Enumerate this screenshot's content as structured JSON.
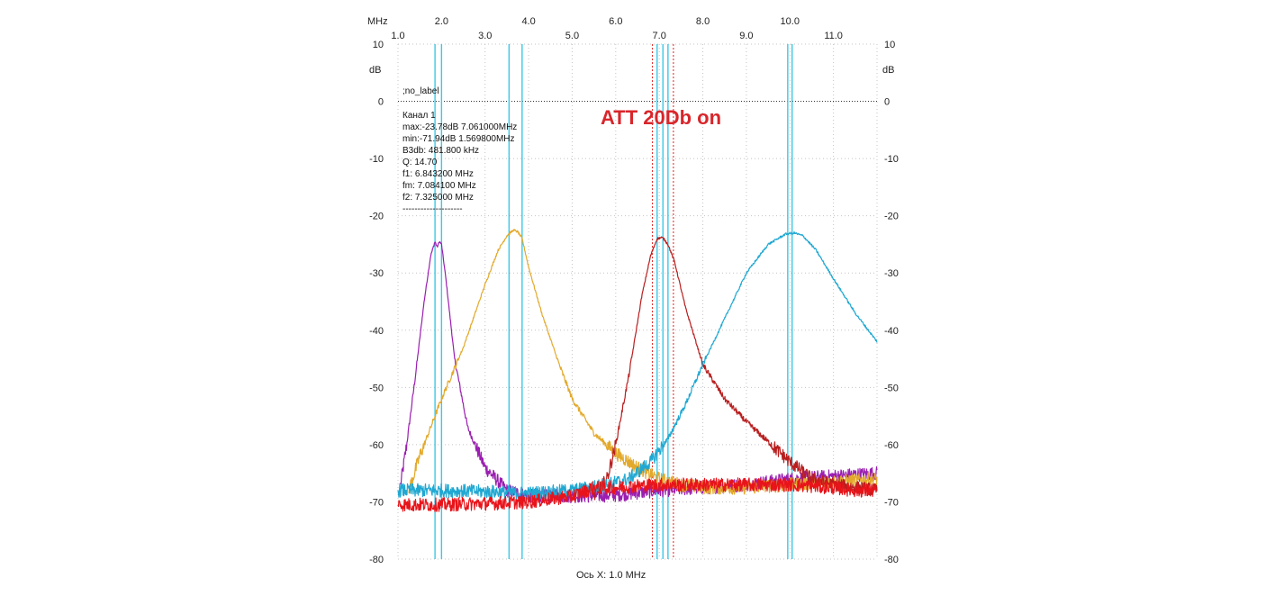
{
  "chart_data": {
    "type": "line",
    "title": "ATT 20Db on",
    "x_unit_label": "MHz",
    "y_unit_label": "dB",
    "xlabel": "Ось X: 1.0 MHz",
    "xlim": [
      1.0,
      12.0
    ],
    "ylim": [
      -80,
      10
    ],
    "x_ticks": [
      {
        "v": 1.0,
        "label": "1.0",
        "row": "lower"
      },
      {
        "v": 2.0,
        "label": "2.0",
        "row": "upper"
      },
      {
        "v": 3.0,
        "label": "3.0",
        "row": "lower"
      },
      {
        "v": 4.0,
        "label": "4.0",
        "row": "upper"
      },
      {
        "v": 5.0,
        "label": "5.0",
        "row": "lower"
      },
      {
        "v": 6.0,
        "label": "6.0",
        "row": "upper"
      },
      {
        "v": 7.0,
        "label": "7.0",
        "row": "lower"
      },
      {
        "v": 8.0,
        "label": "8.0",
        "row": "upper"
      },
      {
        "v": 9.0,
        "label": "9.0",
        "row": "lower"
      },
      {
        "v": 10.0,
        "label": "10.0",
        "row": "upper"
      },
      {
        "v": 11.0,
        "label": "11.0",
        "row": "lower"
      }
    ],
    "y_ticks": [
      10,
      0,
      -10,
      -20,
      -30,
      -40,
      -50,
      -60,
      -70,
      -80
    ],
    "y_tick_labels": [
      "10",
      "0",
      "-10",
      "-20",
      "-30",
      "-40",
      "-50",
      "-60",
      "-70",
      "-80"
    ],
    "reference_line_label": ";no_label",
    "reference_line_y": 0,
    "markers": [
      {
        "x": 1.85,
        "color": "#3cc8e6"
      },
      {
        "x": 2.0,
        "color": "#3cc8e6"
      },
      {
        "x": 3.55,
        "color": "#3cc8e6"
      },
      {
        "x": 3.85,
        "color": "#3cc8e6"
      },
      {
        "x": 6.843,
        "color": "#e02020",
        "dashed": true
      },
      {
        "x": 6.95,
        "color": "#3cc8e6"
      },
      {
        "x": 7.084,
        "color": "#3cc8e6"
      },
      {
        "x": 7.2,
        "color": "#3cc8e6"
      },
      {
        "x": 7.325,
        "color": "#e02020",
        "dashed": true
      },
      {
        "x": 9.95,
        "color": "#3cc8e6"
      },
      {
        "x": 10.05,
        "color": "#3cc8e6"
      }
    ],
    "channel_info": [
      "Канал 1",
      "max:-23.78dB 7.061000MHz",
      "min:-71.94dB 1.569800MHz",
      "B3db: 481.800 kHz",
      "Q: 14.70",
      "f1: 6.843200 MHz",
      "fm: 7.084100 MHz",
      "f2: 7.325000 MHz",
      "--------------------"
    ],
    "series": [
      {
        "name": "purple",
        "color": "#9a1fb0",
        "x": [
          1.06,
          1.2,
          1.4,
          1.6,
          1.75,
          1.85,
          1.9,
          1.95,
          2.0,
          2.1,
          2.3,
          2.6,
          3.0,
          3.5,
          4.0,
          5.0,
          6.0,
          7.0,
          8.0,
          9.0,
          10.0,
          11.0,
          12.0
        ],
        "y": [
          -67,
          -60,
          -48,
          -35,
          -27,
          -24.5,
          -25.5,
          -24.5,
          -25,
          -31,
          -45,
          -57,
          -64,
          -68,
          -69,
          -69,
          -68.8,
          -68,
          -67.5,
          -67,
          -66,
          -65.5,
          -65
        ]
      },
      {
        "name": "orange",
        "color": "#e3a92b",
        "x": [
          1.25,
          1.5,
          2.0,
          2.5,
          3.0,
          3.3,
          3.5,
          3.65,
          3.75,
          3.85,
          4.0,
          4.3,
          4.7,
          5.0,
          5.5,
          6.0,
          6.5,
          7.0,
          7.5,
          8.0,
          9.0,
          10.0,
          11.0,
          12.0
        ],
        "y": [
          -68,
          -62,
          -52,
          -43,
          -32,
          -26,
          -23.5,
          -22.5,
          -22.8,
          -24,
          -29,
          -37,
          -46,
          -52,
          -58,
          -61.5,
          -64,
          -66,
          -67,
          -67.5,
          -67.5,
          -67,
          -66.5,
          -66
        ]
      },
      {
        "name": "darkred",
        "color": "#b81e1e",
        "x": [
          5.5,
          5.8,
          6.0,
          6.3,
          6.6,
          6.8,
          6.95,
          7.05,
          7.1,
          7.2,
          7.35,
          7.6,
          8.0,
          8.5,
          9.0,
          9.5,
          10.0,
          10.5,
          11.0,
          11.5,
          12.0
        ],
        "y": [
          -69,
          -66,
          -60,
          -48,
          -34,
          -27,
          -24,
          -23.8,
          -24,
          -25,
          -28,
          -36,
          -46,
          -52,
          -56,
          -59.5,
          -63,
          -66,
          -67,
          -67.5,
          -68
        ]
      },
      {
        "name": "cyan",
        "color": "#20a8d2",
        "x": [
          1.0,
          2.0,
          3.0,
          4.0,
          5.0,
          5.8,
          6.3,
          6.8,
          7.2,
          7.6,
          8.0,
          8.5,
          9.0,
          9.5,
          9.9,
          10.1,
          10.3,
          10.6,
          11.0,
          11.5,
          12.0
        ],
        "y": [
          -68,
          -68,
          -68.2,
          -68.5,
          -68,
          -67,
          -66,
          -63,
          -59,
          -53,
          -46,
          -38,
          -30,
          -25,
          -23.2,
          -23,
          -23.5,
          -26,
          -31,
          -37,
          -42
        ]
      },
      {
        "name": "red",
        "color": "#e8141a",
        "x": [
          1.0,
          2.0,
          3.0,
          4.0,
          4.5,
          5.0,
          5.5,
          6.0,
          6.5,
          7.0,
          7.5,
          8.0,
          9.0,
          10.0,
          11.0,
          11.5,
          12.0
        ],
        "y": [
          -70.5,
          -70.5,
          -70.3,
          -70,
          -69.5,
          -69,
          -67.5,
          -67.5,
          -67.2,
          -67,
          -67,
          -67,
          -67,
          -67,
          -67.5,
          -68,
          -68
        ]
      }
    ]
  }
}
